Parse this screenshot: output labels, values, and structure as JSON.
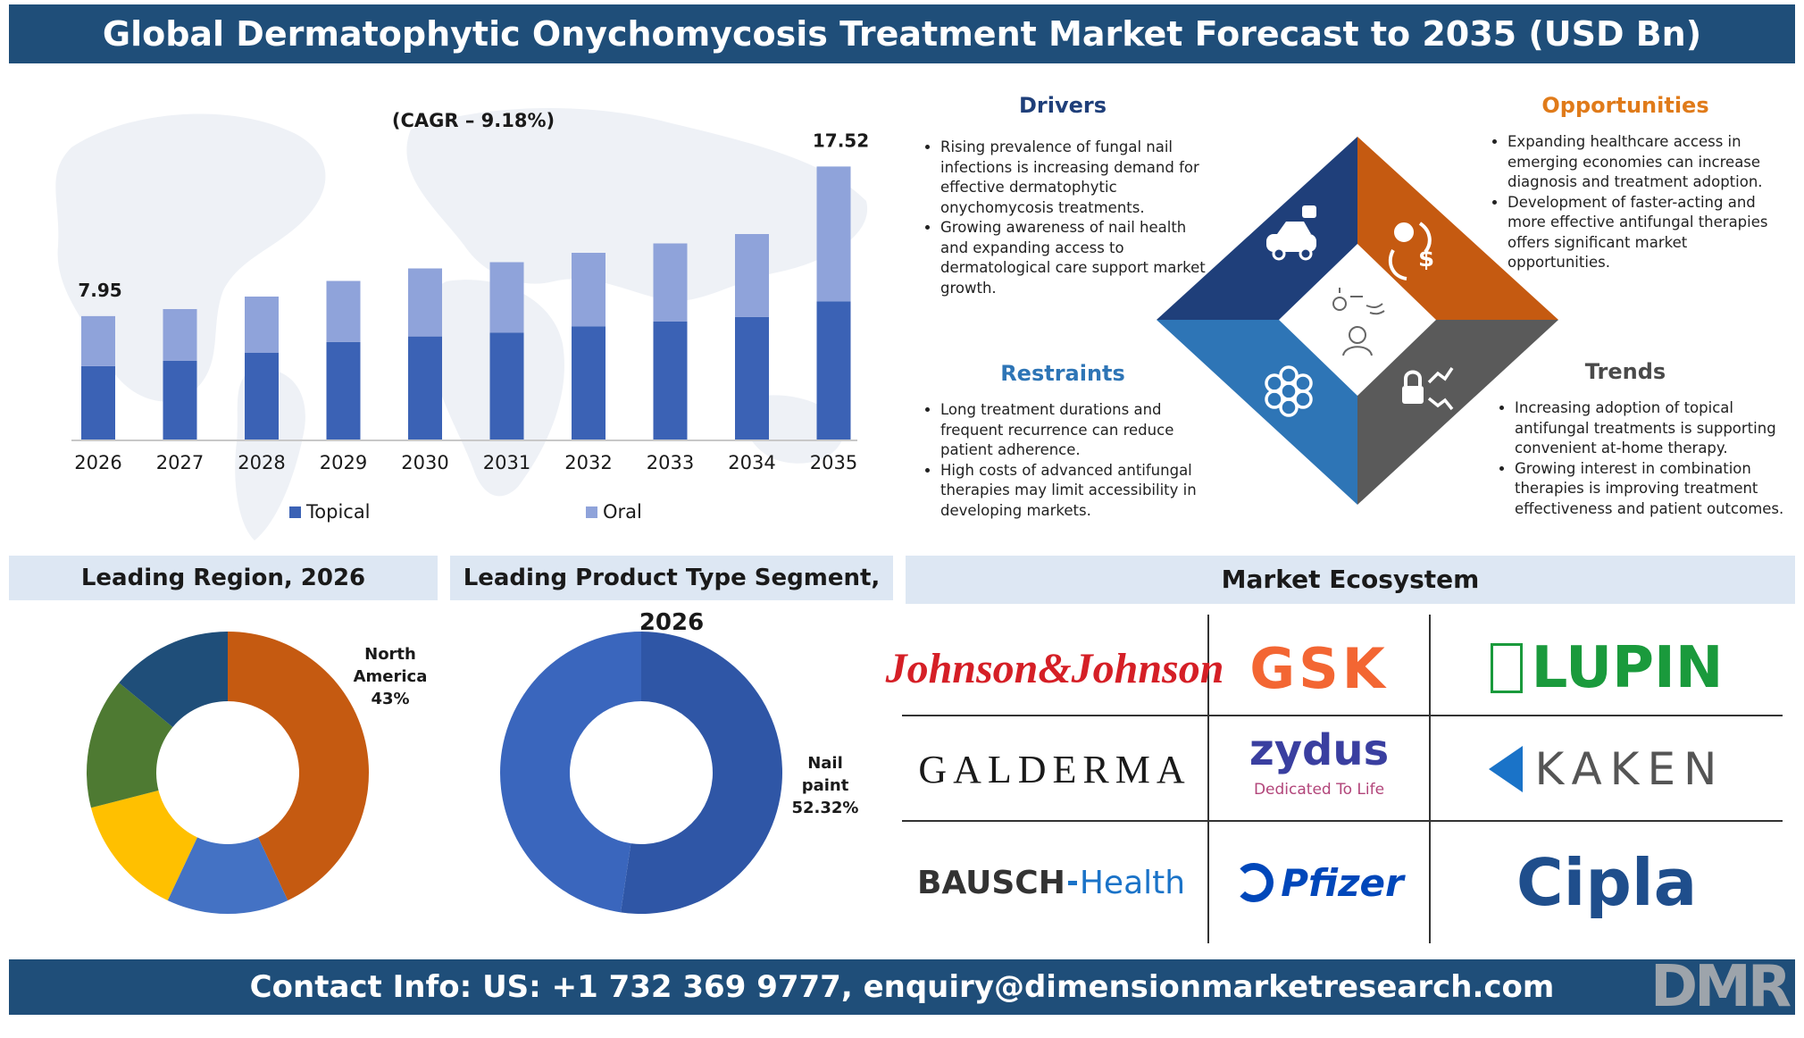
{
  "title": "Global Dermatophytic Onychomycosis Treatment  Market Forecast to 2035 (USD Bn)",
  "footer": "Contact Info: US: +1 732 369 9777, enquiry@dimensionmarketresearch.com",
  "footer_logo": "DMR",
  "colors": {
    "banner": "#1f4e79",
    "topical": "#3b62b5",
    "oral": "#8fa3da",
    "section_bg": "#dde7f3"
  },
  "chart_data": [
    {
      "type": "bar",
      "stacked": true,
      "annotation": "(CAGR – 9.18%)",
      "categories": [
        "2026",
        "2027",
        "2028",
        "2029",
        "2030",
        "2031",
        "2032",
        "2033",
        "2034",
        "2035"
      ],
      "series": [
        {
          "name": "Topical",
          "values": [
            4.75,
            5.1,
            5.6,
            6.3,
            6.65,
            6.9,
            7.3,
            7.6,
            7.9,
            8.9
          ]
        },
        {
          "name": "Oral",
          "values": [
            3.2,
            3.3,
            3.6,
            3.9,
            4.35,
            4.5,
            4.7,
            5.0,
            5.3,
            8.62
          ]
        }
      ],
      "data_labels": [
        {
          "category": "2026",
          "text": "7.95"
        },
        {
          "category": "2035",
          "text": "17.52"
        }
      ],
      "ylim": [
        0,
        20
      ],
      "grid": false,
      "legend": "bottom"
    },
    {
      "type": "pie",
      "title": "Leading Region, 2026",
      "donut": true,
      "slices": [
        {
          "label": "North America",
          "value": 43,
          "color": "#c55a11"
        },
        {
          "label": "",
          "value": 14,
          "color": "#4472c4"
        },
        {
          "label": "",
          "value": 14,
          "color": "#ffc000"
        },
        {
          "label": "",
          "value": 15,
          "color": "#4e7a32"
        },
        {
          "label": "",
          "value": 14,
          "color": "#1f4e79"
        }
      ],
      "label_text": {
        "name_line1": "North",
        "name_line2": "America",
        "value": "43%"
      }
    },
    {
      "type": "pie",
      "title": "Leading Product Type Segment, 2026",
      "donut": true,
      "slices": [
        {
          "label": "Nail paint",
          "value": 52.32,
          "color": "#2f56a6"
        },
        {
          "label": "",
          "value": 47.68,
          "color": "#3a66bd"
        }
      ],
      "label_text": {
        "name_line1": "Nail",
        "name_line2": "paint",
        "value": "52.32%"
      }
    }
  ],
  "quadrants": {
    "drivers": {
      "title": "Drivers",
      "color": "#1f3f7a",
      "items": [
        "Rising prevalence of fungal nail infections is increasing demand for effective dermatophytic onychomycosis treatments.",
        "Growing awareness of nail health and expanding access to dermatological care support market growth."
      ]
    },
    "opportunities": {
      "title": "Opportunities",
      "color": "#e07b1a",
      "items": [
        "Expanding healthcare access in emerging economies can increase diagnosis and treatment adoption.",
        "Development of faster-acting and more effective antifungal therapies offers significant market opportunities."
      ]
    },
    "restraints": {
      "title": "Restraints",
      "color": "#2e75b6",
      "items": [
        "Long treatment durations and frequent recurrence can reduce patient adherence.",
        "High costs of advanced antifungal therapies may limit accessibility in developing markets."
      ]
    },
    "trends": {
      "title": "Trends",
      "color": "#4a4a4a",
      "items": [
        "Increasing adoption of topical antifungal treatments is supporting convenient at-home therapy.",
        "Growing interest in combination therapies is improving treatment effectiveness and patient outcomes."
      ]
    }
  },
  "diamond_icons": [
    "robot-car-icon",
    "cycle-dollar-icon",
    "flower-gear-icon",
    "lock-trend-icon",
    "person-idea-icon"
  ],
  "ecosystem": {
    "title": "Market Ecosystem",
    "logos": [
      {
        "text": "Johnson&Johnson",
        "color": "#d51f26"
      },
      {
        "text": "GSK",
        "color": "#f36633"
      },
      {
        "text": "LUPIN",
        "color": "#1a9a3c"
      },
      {
        "text": "GALDERMA",
        "color": "#1a1a1a"
      },
      {
        "text": "zydus",
        "color": "#3a3fa0",
        "tagline": "Dedicated To Life",
        "tagline_color": "#b2457a"
      },
      {
        "text": "KAKEN",
        "color": "#555555"
      },
      {
        "text": "BAUSCH",
        "text2": "Health",
        "color": "#333333",
        "color2": "#1a73c8"
      },
      {
        "text": "Pfizer",
        "color": "#0047ba"
      },
      {
        "text": "Cipla",
        "color": "#1f4e8c"
      }
    ]
  }
}
